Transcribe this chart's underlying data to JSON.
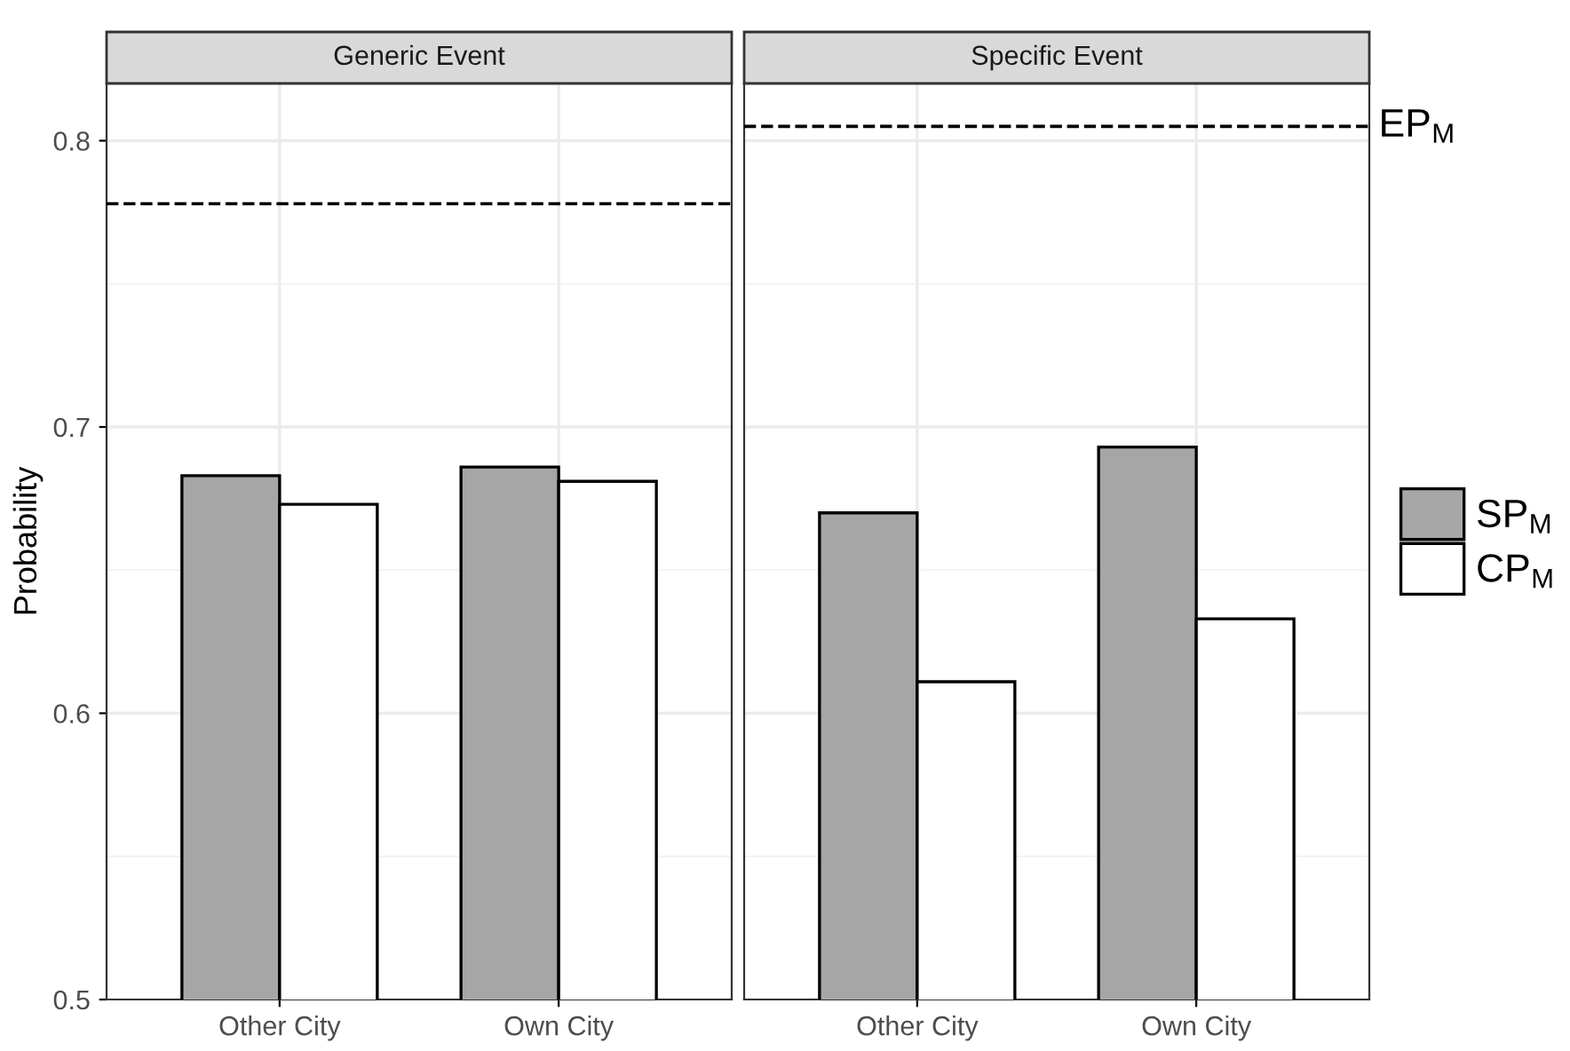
{
  "chart_data": [
    {
      "type": "bar",
      "title": "Generic Event",
      "ylabel": "Probability",
      "categories": [
        "Other City",
        "Own City"
      ],
      "series": [
        {
          "color": "#a6a6a6",
          "values": [
            0.683,
            0.686
          ]
        },
        {
          "color": "#ffffff",
          "values": [
            0.673,
            0.681
          ]
        }
      ],
      "ylim": [
        0.5,
        0.82
      ],
      "yticks": [
        0.5,
        0.6,
        0.7,
        0.8
      ],
      "grid": true,
      "ref_lines": [
        {
          "axis": "y",
          "value": 0.778,
          "label": null,
          "line_style": "dashed",
          "color": "#000000"
        }
      ]
    },
    {
      "type": "bar",
      "title": "Specific Event",
      "categories": [
        "Other City",
        "Own City"
      ],
      "series": [
        {
          "name": "SP$_{M}$",
          "color": "#a6a6a6",
          "values": [
            0.67,
            0.693
          ]
        },
        {
          "name": "CP$_{M}$",
          "color": "#ffffff",
          "values": [
            0.611,
            0.633
          ]
        }
      ],
      "ylim": [
        0.5,
        0.82
      ],
      "yticks": [
        0.5,
        0.6,
        0.7,
        0.8
      ],
      "grid": true,
      "tick_labels": "x",
      "legend": "right",
      "ref_lines": [
        {
          "axis": "y",
          "value": 0.805,
          "label": "EP$_{M}$",
          "line_style": "dashed",
          "color": "#000000"
        }
      ]
    }
  ]
}
